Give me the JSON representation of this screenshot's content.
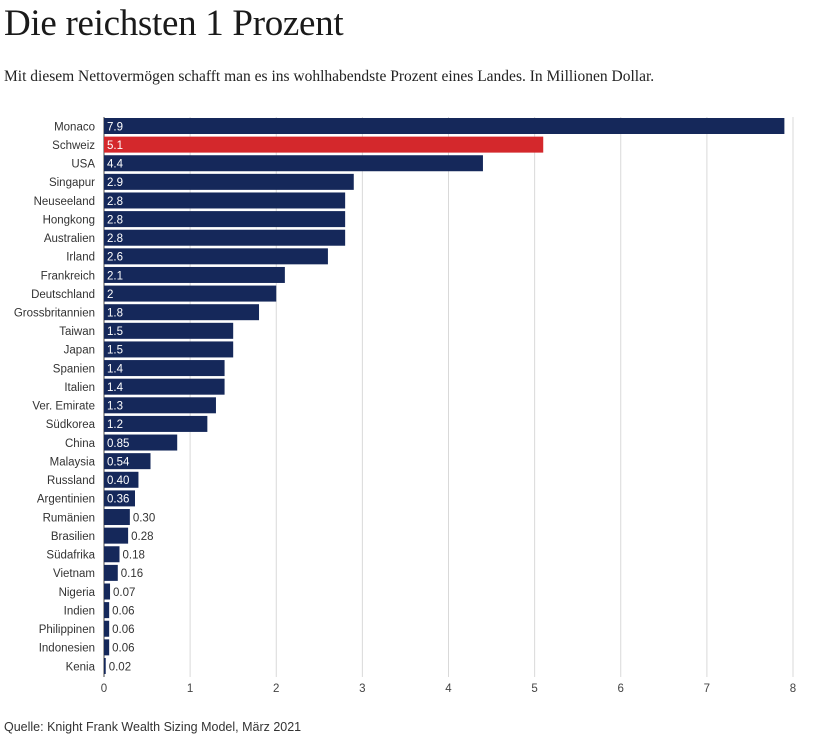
{
  "header": {
    "title": "Die reichsten 1 Prozent",
    "subtitle": "Mit diesem Nettovermögen schafft man es ins wohlhabendste Prozent eines Landes. In Millionen Dollar."
  },
  "footer": {
    "source": "Quelle: Knight Frank Wealth Sizing Model, März 2021"
  },
  "chart_data": {
    "type": "bar",
    "orientation": "horizontal",
    "categories": [
      "Monaco",
      "Schweiz",
      "USA",
      "Singapur",
      "Neuseeland",
      "Hongkong",
      "Australien",
      "Irland",
      "Frankreich",
      "Deutschland",
      "Grossbritannien",
      "Taiwan",
      "Japan",
      "Spanien",
      "Italien",
      "Ver. Emirate",
      "Südkorea",
      "China",
      "Malaysia",
      "Russland",
      "Argentinien",
      "Rumänien",
      "Brasilien",
      "Südafrika",
      "Vietnam",
      "Nigeria",
      "Indien",
      "Philippinen",
      "Indonesien",
      "Kenia"
    ],
    "values": [
      7.9,
      5.1,
      4.4,
      2.9,
      2.8,
      2.8,
      2.8,
      2.6,
      2.1,
      2.0,
      1.8,
      1.5,
      1.5,
      1.4,
      1.4,
      1.3,
      1.2,
      0.85,
      0.54,
      0.4,
      0.36,
      0.3,
      0.28,
      0.18,
      0.16,
      0.07,
      0.06,
      0.06,
      0.06,
      0.02
    ],
    "value_labels": [
      "7.9",
      "5.1",
      "4.4",
      "2.9",
      "2.8",
      "2.8",
      "2.8",
      "2.6",
      "2.1",
      "2",
      "1.8",
      "1.5",
      "1.5",
      "1.4",
      "1.4",
      "1.3",
      "1.2",
      "0.85",
      "0.54",
      "0.40",
      "0.36",
      "0.30",
      "0.28",
      "0.18",
      "0.16",
      "0.07",
      "0.06",
      "0.06",
      "0.06",
      "0.02"
    ],
    "highlight": "Schweiz",
    "colors": {
      "bar": "#15285a",
      "highlight": "#d4282c",
      "grid": "#d9d9d9",
      "axis": "#444444"
    },
    "xlim": [
      0,
      8
    ],
    "xticks": [
      "0",
      "1",
      "2",
      "3",
      "4",
      "5",
      "6",
      "7",
      "8"
    ],
    "grid": true,
    "xlabel": "",
    "ylabel": ""
  }
}
